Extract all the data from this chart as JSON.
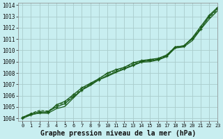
{
  "title": "Graphe pression niveau de la mer (hPa)",
  "bg_color": "#c8eef0",
  "grid_color": "#aacccc",
  "line_color": "#1a5c1a",
  "xlim": [
    -0.5,
    23
  ],
  "ylim": [
    1003.8,
    1014.2
  ],
  "yticks": [
    1004,
    1005,
    1006,
    1007,
    1008,
    1009,
    1010,
    1011,
    1012,
    1013,
    1014
  ],
  "xticks": [
    0,
    1,
    2,
    3,
    4,
    5,
    6,
    7,
    8,
    9,
    10,
    11,
    12,
    13,
    14,
    15,
    16,
    17,
    18,
    19,
    20,
    21,
    22,
    23
  ],
  "series": [
    [
      1004.0,
      1004.3,
      1004.5,
      1004.6,
      1005.0,
      1005.3,
      1005.9,
      1006.5,
      1007.0,
      1007.4,
      1007.8,
      1008.1,
      1008.4,
      1008.7,
      1009.0,
      1009.1,
      1009.2,
      1009.5,
      1010.3,
      1010.4,
      1011.0,
      1011.9,
      1013.0,
      1013.7
    ],
    [
      1004.1,
      1004.4,
      1004.6,
      1004.5,
      1005.2,
      1005.5,
      1006.1,
      1006.7,
      1007.1,
      1007.5,
      1008.0,
      1008.3,
      1008.5,
      1008.9,
      1009.1,
      1009.2,
      1009.3,
      1009.6,
      1010.3,
      1010.4,
      1011.1,
      1012.1,
      1013.1,
      1013.8
    ],
    [
      1004.05,
      1004.45,
      1004.7,
      1004.65,
      1005.1,
      1005.4,
      1006.0,
      1006.6,
      1007.05,
      1007.5,
      1007.95,
      1008.2,
      1008.5,
      1008.8,
      1009.05,
      1009.15,
      1009.25,
      1009.55,
      1010.3,
      1010.35,
      1011.05,
      1012.0,
      1012.9,
      1013.6
    ],
    [
      1004.0,
      1004.35,
      1004.45,
      1004.45,
      1004.85,
      1005.05,
      1005.8,
      1006.5,
      1006.9,
      1007.4,
      1007.7,
      1008.05,
      1008.35,
      1008.65,
      1008.95,
      1009.0,
      1009.15,
      1009.45,
      1010.2,
      1010.3,
      1010.85,
      1011.85,
      1012.75,
      1013.5
    ]
  ],
  "marker_series": [
    0,
    2
  ],
  "title_fontsize": 7,
  "tick_fontsize": 5.5
}
